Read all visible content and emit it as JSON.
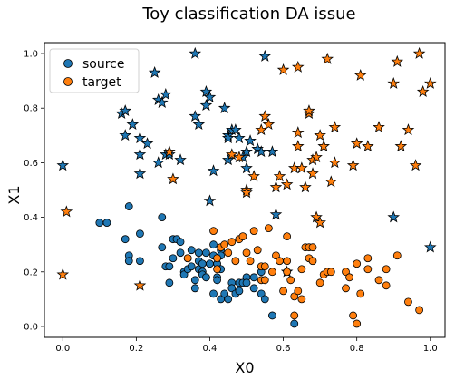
{
  "chart_data": {
    "type": "scatter",
    "title": "Toy classification DA issue",
    "xlabel": "X0",
    "ylabel": "X1",
    "xlim": [
      -0.05,
      1.04
    ],
    "ylim": [
      -0.04,
      1.04
    ],
    "xticks": [
      "0.0",
      "0.2",
      "0.4",
      "0.6",
      "0.8",
      "1.0"
    ],
    "yticks": [
      "0.0",
      "0.2",
      "0.4",
      "0.6",
      "0.8",
      "1.0"
    ],
    "grid": false,
    "legend": {
      "position": "upper-left",
      "entries": [
        "source",
        "target"
      ]
    },
    "colors": {
      "source": "#1f77b4",
      "target": "#ff7f0e"
    },
    "marker_meaning": {
      "circle": "class 0",
      "star": "class 1"
    },
    "series": [
      {
        "name": "source",
        "color": "#1f77b4",
        "circles": [
          [
            0.1,
            0.38
          ],
          [
            0.12,
            0.38
          ],
          [
            0.17,
            0.32
          ],
          [
            0.18,
            0.44
          ],
          [
            0.18,
            0.26
          ],
          [
            0.18,
            0.24
          ],
          [
            0.21,
            0.34
          ],
          [
            0.21,
            0.24
          ],
          [
            0.27,
            0.4
          ],
          [
            0.27,
            0.29
          ],
          [
            0.28,
            0.22
          ],
          [
            0.29,
            0.22
          ],
          [
            0.29,
            0.16
          ],
          [
            0.3,
            0.32
          ],
          [
            0.3,
            0.25
          ],
          [
            0.31,
            0.32
          ],
          [
            0.32,
            0.31
          ],
          [
            0.32,
            0.27
          ],
          [
            0.33,
            0.2
          ],
          [
            0.33,
            0.19
          ],
          [
            0.34,
            0.25
          ],
          [
            0.34,
            0.21
          ],
          [
            0.35,
            0.28
          ],
          [
            0.35,
            0.22
          ],
          [
            0.36,
            0.17
          ],
          [
            0.36,
            0.14
          ],
          [
            0.37,
            0.27
          ],
          [
            0.37,
            0.24
          ],
          [
            0.37,
            0.21
          ],
          [
            0.38,
            0.23
          ],
          [
            0.38,
            0.2
          ],
          [
            0.38,
            0.19
          ],
          [
            0.39,
            0.27
          ],
          [
            0.39,
            0.18
          ],
          [
            0.4,
            0.23
          ],
          [
            0.41,
            0.3
          ],
          [
            0.41,
            0.26
          ],
          [
            0.41,
            0.12
          ],
          [
            0.42,
            0.23
          ],
          [
            0.42,
            0.18
          ],
          [
            0.42,
            0.17
          ],
          [
            0.43,
            0.28
          ],
          [
            0.43,
            0.26
          ],
          [
            0.43,
            0.21
          ],
          [
            0.43,
            0.1
          ],
          [
            0.44,
            0.12
          ],
          [
            0.45,
            0.1
          ],
          [
            0.46,
            0.16
          ],
          [
            0.46,
            0.14
          ],
          [
            0.47,
            0.12
          ],
          [
            0.48,
            0.16
          ],
          [
            0.48,
            0.13
          ],
          [
            0.49,
            0.16
          ],
          [
            0.5,
            0.18
          ],
          [
            0.5,
            0.16
          ],
          [
            0.52,
            0.18
          ],
          [
            0.52,
            0.14
          ],
          [
            0.54,
            0.2
          ],
          [
            0.54,
            0.12
          ],
          [
            0.55,
            0.1
          ],
          [
            0.57,
            0.04
          ],
          [
            0.63,
            0.01
          ]
        ],
        "stars": [
          [
            0.0,
            0.59
          ],
          [
            0.16,
            0.78
          ],
          [
            0.17,
            0.79
          ],
          [
            0.17,
            0.7
          ],
          [
            0.19,
            0.74
          ],
          [
            0.21,
            0.69
          ],
          [
            0.21,
            0.56
          ],
          [
            0.21,
            0.63
          ],
          [
            0.23,
            0.67
          ],
          [
            0.25,
            0.93
          ],
          [
            0.26,
            0.6
          ],
          [
            0.26,
            0.83
          ],
          [
            0.27,
            0.82
          ],
          [
            0.28,
            0.85
          ],
          [
            0.28,
            0.63
          ],
          [
            0.29,
            0.63
          ],
          [
            0.32,
            0.61
          ],
          [
            0.36,
            1.0
          ],
          [
            0.36,
            0.77
          ],
          [
            0.37,
            0.74
          ],
          [
            0.39,
            0.81
          ],
          [
            0.39,
            0.86
          ],
          [
            0.4,
            0.84
          ],
          [
            0.4,
            0.46
          ],
          [
            0.41,
            0.57
          ],
          [
            0.44,
            0.8
          ],
          [
            0.45,
            0.7
          ],
          [
            0.45,
            0.69
          ],
          [
            0.45,
            0.61
          ],
          [
            0.46,
            0.72
          ],
          [
            0.47,
            0.72
          ],
          [
            0.48,
            0.69
          ],
          [
            0.49,
            0.62
          ],
          [
            0.5,
            0.64
          ],
          [
            0.5,
            0.58
          ],
          [
            0.51,
            0.68
          ],
          [
            0.53,
            0.65
          ],
          [
            0.54,
            0.64
          ],
          [
            0.55,
            0.99
          ],
          [
            0.57,
            0.64
          ],
          [
            0.58,
            0.41
          ],
          [
            0.61,
            0.2
          ],
          [
            0.9,
            0.4
          ],
          [
            1.0,
            0.29
          ]
        ]
      },
      {
        "name": "target",
        "color": "#ff7f0e",
        "circles": [
          [
            0.34,
            0.25
          ],
          [
            0.41,
            0.35
          ],
          [
            0.42,
            0.25
          ],
          [
            0.42,
            0.21
          ],
          [
            0.43,
            0.29
          ],
          [
            0.44,
            0.3
          ],
          [
            0.45,
            0.27
          ],
          [
            0.46,
            0.31
          ],
          [
            0.47,
            0.24
          ],
          [
            0.48,
            0.32
          ],
          [
            0.49,
            0.33
          ],
          [
            0.5,
            0.27
          ],
          [
            0.51,
            0.24
          ],
          [
            0.52,
            0.35
          ],
          [
            0.53,
            0.28
          ],
          [
            0.54,
            0.22
          ],
          [
            0.54,
            0.17
          ],
          [
            0.55,
            0.22
          ],
          [
            0.55,
            0.17
          ],
          [
            0.56,
            0.36
          ],
          [
            0.57,
            0.2
          ],
          [
            0.58,
            0.26
          ],
          [
            0.59,
            0.24
          ],
          [
            0.6,
            0.13
          ],
          [
            0.61,
            0.24
          ],
          [
            0.61,
            0.33
          ],
          [
            0.61,
            0.2
          ],
          [
            0.62,
            0.17
          ],
          [
            0.63,
            0.11
          ],
          [
            0.63,
            0.04
          ],
          [
            0.64,
            0.13
          ],
          [
            0.65,
            0.1
          ],
          [
            0.65,
            0.21
          ],
          [
            0.66,
            0.29
          ],
          [
            0.67,
            0.29
          ],
          [
            0.67,
            0.25
          ],
          [
            0.68,
            0.29
          ],
          [
            0.68,
            0.24
          ],
          [
            0.7,
            0.16
          ],
          [
            0.71,
            0.19
          ],
          [
            0.72,
            0.2
          ],
          [
            0.73,
            0.2
          ],
          [
            0.77,
            0.14
          ],
          [
            0.77,
            0.2
          ],
          [
            0.78,
            0.18
          ],
          [
            0.79,
            0.04
          ],
          [
            0.8,
            0.23
          ],
          [
            0.8,
            0.01
          ],
          [
            0.81,
            0.12
          ],
          [
            0.83,
            0.25
          ],
          [
            0.83,
            0.21
          ],
          [
            0.86,
            0.17
          ],
          [
            0.88,
            0.15
          ],
          [
            0.88,
            0.21
          ],
          [
            0.91,
            0.26
          ],
          [
            0.94,
            0.09
          ],
          [
            0.97,
            0.06
          ]
        ],
        "stars": [
          [
            0.0,
            0.19
          ],
          [
            0.01,
            0.42
          ],
          [
            0.21,
            0.15
          ],
          [
            0.29,
            0.64
          ],
          [
            0.3,
            0.54
          ],
          [
            0.46,
            0.63
          ],
          [
            0.48,
            0.62
          ],
          [
            0.5,
            0.5
          ],
          [
            0.5,
            0.49
          ],
          [
            0.52,
            0.55
          ],
          [
            0.54,
            0.72
          ],
          [
            0.55,
            0.77
          ],
          [
            0.56,
            0.74
          ],
          [
            0.58,
            0.51
          ],
          [
            0.59,
            0.55
          ],
          [
            0.6,
            0.94
          ],
          [
            0.61,
            0.52
          ],
          [
            0.63,
            0.58
          ],
          [
            0.64,
            0.95
          ],
          [
            0.64,
            0.66
          ],
          [
            0.64,
            0.71
          ],
          [
            0.65,
            0.58
          ],
          [
            0.66,
            0.51
          ],
          [
            0.67,
            0.78
          ],
          [
            0.67,
            0.79
          ],
          [
            0.68,
            0.56
          ],
          [
            0.68,
            0.61
          ],
          [
            0.69,
            0.62
          ],
          [
            0.69,
            0.4
          ],
          [
            0.7,
            0.38
          ],
          [
            0.7,
            0.7
          ],
          [
            0.71,
            0.66
          ],
          [
            0.72,
            0.98
          ],
          [
            0.73,
            0.53
          ],
          [
            0.74,
            0.6
          ],
          [
            0.74,
            0.73
          ],
          [
            0.79,
            0.59
          ],
          [
            0.8,
            0.67
          ],
          [
            0.81,
            0.92
          ],
          [
            0.83,
            0.66
          ],
          [
            0.86,
            0.73
          ],
          [
            0.9,
            0.89
          ],
          [
            0.91,
            0.97
          ],
          [
            0.92,
            0.66
          ],
          [
            0.94,
            0.72
          ],
          [
            0.96,
            0.59
          ],
          [
            0.97,
            1.0
          ],
          [
            0.98,
            0.86
          ],
          [
            1.0,
            0.89
          ]
        ]
      }
    ]
  }
}
